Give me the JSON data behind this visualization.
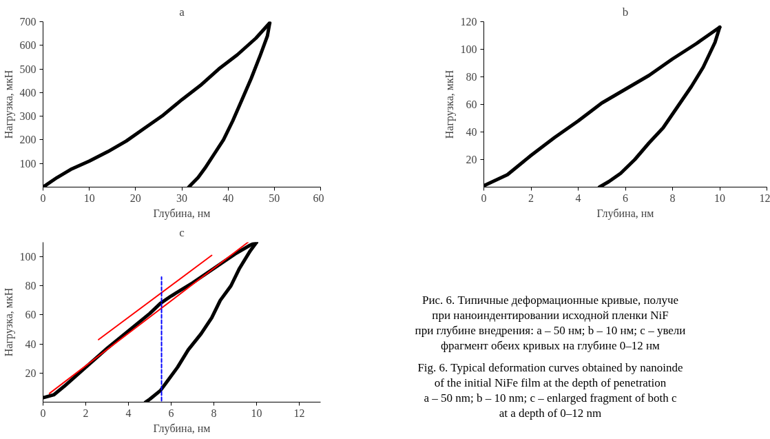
{
  "chart_data": [
    {
      "type": "line",
      "title": "a",
      "xlabel": "Глубина, нм",
      "ylabel": "Нагрузка, мкН",
      "xlim": [
        0,
        60
      ],
      "ylim": [
        0,
        700
      ],
      "xticks": [
        0,
        10,
        20,
        30,
        40,
        50,
        60
      ],
      "yticks": [
        100,
        200,
        300,
        400,
        500,
        600,
        700
      ],
      "series": [
        {
          "color": "#000000",
          "x": [
            0,
            3,
            6,
            10,
            14,
            18,
            22,
            26,
            30,
            34,
            38,
            42,
            46,
            49
          ],
          "values": [
            0,
            40,
            75,
            110,
            150,
            195,
            250,
            305,
            370,
            430,
            500,
            560,
            630,
            695
          ]
        },
        {
          "color": "#000000",
          "x": [
            49,
            48.5,
            47,
            45,
            43,
            41,
            39,
            37,
            35,
            33.5,
            32,
            31.5
          ],
          "values": [
            695,
            640,
            560,
            460,
            370,
            280,
            200,
            140,
            80,
            40,
            10,
            0
          ]
        }
      ]
    },
    {
      "type": "line",
      "title": "b",
      "xlabel": "Глубина, нм",
      "ylabel": "Нагрузка, мкН",
      "xlim": [
        0,
        12
      ],
      "ylim": [
        0,
        120
      ],
      "xticks": [
        0,
        2,
        4,
        6,
        8,
        10,
        12
      ],
      "yticks": [
        20,
        40,
        60,
        80,
        100,
        120
      ],
      "series": [
        {
          "color": "#000000",
          "x": [
            0,
            1,
            2,
            3,
            4,
            5,
            6,
            7,
            8,
            9,
            10
          ],
          "values": [
            1,
            9,
            23,
            36,
            48,
            61,
            71,
            81,
            93,
            104,
            116
          ]
        },
        {
          "color": "#000000",
          "x": [
            10,
            9.8,
            9.3,
            8.8,
            8.2,
            7.6,
            7,
            6.4,
            5.8,
            5.3,
            4.9
          ],
          "values": [
            116,
            105,
            87,
            73,
            58,
            43,
            32,
            20,
            10,
            4,
            0
          ]
        }
      ]
    },
    {
      "type": "line",
      "title": "c",
      "xlabel": "Глубина, нм",
      "ylabel": "Нагрузка, мкН",
      "xlim": [
        0,
        13
      ],
      "ylim": [
        0,
        110
      ],
      "xticks": [
        0,
        2,
        4,
        6,
        8,
        10,
        12
      ],
      "yticks": [
        20,
        40,
        60,
        80,
        100
      ],
      "series": [
        {
          "color": "#000000",
          "x": [
            0,
            0.5,
            1,
            2,
            3,
            4,
            5,
            5.5,
            6,
            7,
            8,
            9,
            9.7,
            10
          ],
          "values": [
            3,
            5,
            11,
            24,
            37,
            49,
            61,
            68,
            73,
            82,
            92,
            102,
            108,
            110
          ]
        },
        {
          "color": "#000000",
          "x": [
            10,
            9.7,
            9.2,
            8.8,
            8.3,
            7.9,
            7.4,
            6.8,
            6.3,
            5.8,
            5.5,
            5,
            4.8
          ],
          "values": [
            110,
            104,
            92,
            80,
            70,
            58,
            47,
            36,
            24,
            14,
            8,
            2,
            0
          ]
        },
        {
          "color": "#ff0000",
          "x": [
            0.3,
            9.6
          ],
          "values": [
            6,
            110
          ]
        },
        {
          "color": "#ff0000",
          "x": [
            2.6,
            7.9
          ],
          "values": [
            43,
            101
          ]
        },
        {
          "color": "#0000ff",
          "line_style": "dashed",
          "x": [
            5.55,
            5.55
          ],
          "values": [
            1,
            86
          ]
        }
      ]
    },
    {
      "type": "other",
      "annotations": [
        "Рис. 6. Типичные деформационные кривые, получе",
        "при наноиндентировании исходной пленки NiF",
        "при глубине внедрения: a – 50 нм; b – 10 нм; c – увели",
        "фрагмент обеих кривых на глубине 0–12 нм",
        "Fig. 6. Typical deformation curves obtained by nanoinde",
        "of the initial NiFe film at the depth of penetration",
        "a – 50 nm; b – 10 nm; c – enlarged fragment of both c",
        "at a depth of 0–12 nm"
      ]
    }
  ]
}
